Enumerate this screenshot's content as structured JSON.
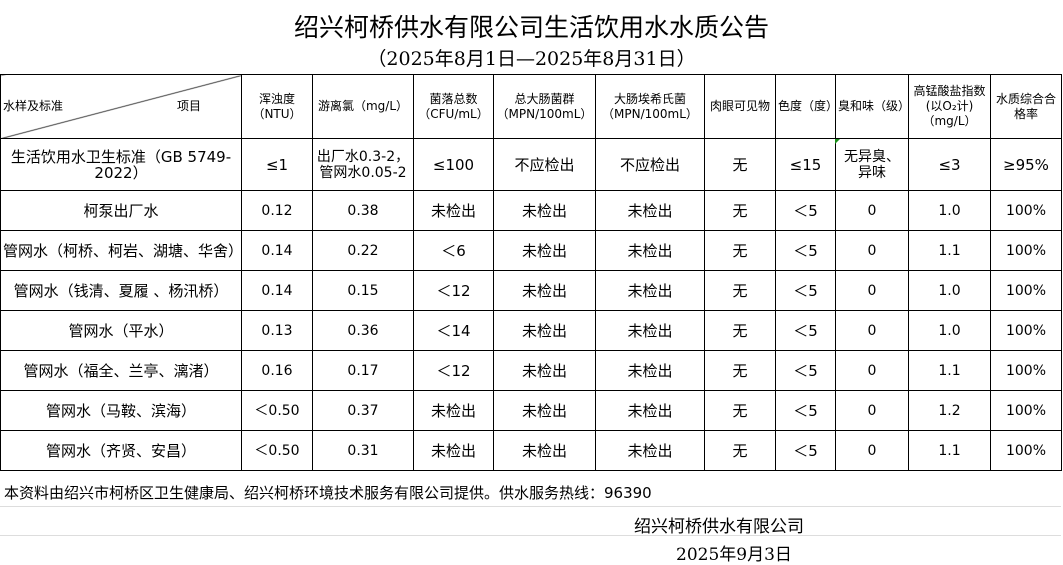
{
  "title": "绍兴柯桥供水有限公司生活饮用水水质公告",
  "subtitle": "（2025年8月1日—2025年8月31日）",
  "header": {
    "corner_left": "水样及标准",
    "corner_right": "项目",
    "columns": [
      "浑浊度（NTU）",
      "游离氯（mg/L）",
      "菌落总数（CFU/mL）",
      "总大肠菌群（MPN/100mL）",
      "大肠埃希氏菌（MPN/100mL）",
      "肉眼可见物",
      "色度（度）",
      "臭和味（级）",
      "高锰酸盐指数(以O₂计)（mg/L）",
      "水质综合合格率"
    ]
  },
  "standard": {
    "name": "生活饮用水卫生标准（GB 5749-2022）",
    "values": [
      "≤1",
      "出厂水0.3-2，管网水0.05-2",
      "≤100",
      "不应检出",
      "不应检出",
      "无",
      "≤15",
      "无异臭、异味",
      "≤3",
      "≥95%"
    ]
  },
  "rows": [
    {
      "name": "柯泵出厂水",
      "values": [
        "0.12",
        "0.38",
        "未检出",
        "未检出",
        "未检出",
        "无",
        "＜5",
        "0",
        "1.0",
        "100%"
      ]
    },
    {
      "name": "管网水（柯桥、柯岩、湖塘、华舍）",
      "values": [
        "0.14",
        "0.22",
        "＜6",
        "未检出",
        "未检出",
        "无",
        "＜5",
        "0",
        "1.1",
        "100%"
      ]
    },
    {
      "name": "管网水（钱清、夏履 、杨汛桥）",
      "values": [
        "0.14",
        "0.15",
        "＜12",
        "未检出",
        "未检出",
        "无",
        "＜5",
        "0",
        "1.0",
        "100%"
      ]
    },
    {
      "name": "管网水（平水）",
      "values": [
        "0.13",
        "0.36",
        "＜14",
        "未检出",
        "未检出",
        "无",
        "＜5",
        "0",
        "1.0",
        "100%"
      ]
    },
    {
      "name": "管网水（福全、兰亭、漓渚）",
      "values": [
        "0.16",
        "0.17",
        "＜12",
        "未检出",
        "未检出",
        "无",
        "＜5",
        "0",
        "1.1",
        "100%"
      ]
    },
    {
      "name": "管网水（马鞍、滨海）",
      "values": [
        "＜0.50",
        "0.37",
        "未检出",
        "未检出",
        "未检出",
        "无",
        "＜5",
        "0",
        "1.2",
        "100%"
      ]
    },
    {
      "name": "管网水（齐贤、安昌）",
      "values": [
        "＜0.50",
        "0.31",
        "未检出",
        "未检出",
        "未检出",
        "无",
        "＜5",
        "0",
        "1.1",
        "100%"
      ]
    }
  ],
  "footer": {
    "source": "本资料由绍兴市柯桥区卫生健康局、绍兴柯桥环境技术服务有限公司提供。供水服务热线：96390",
    "org": "绍兴柯桥供水有限公司",
    "date": "2025年9月3日"
  }
}
